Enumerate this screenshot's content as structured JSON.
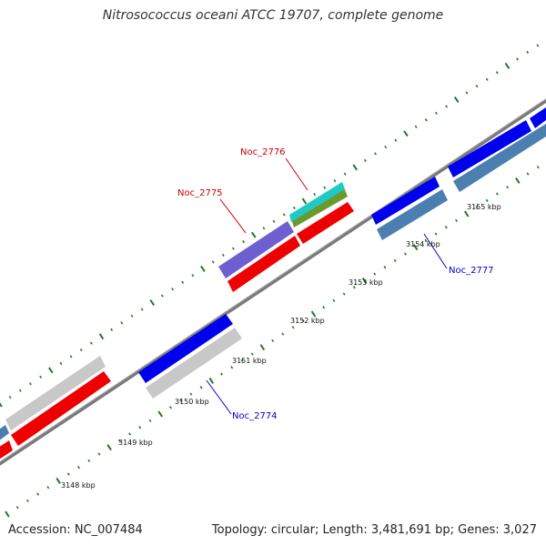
{
  "title": "Nitrosococcus oceani ATCC 19707, complete genome",
  "footer": {
    "accession": "Accession: NC_007484",
    "stats": "Topology: circular; Length: 3,481,691 bp; Genes: 3,027"
  },
  "colors": {
    "backbone": "#808080",
    "tick": "#1f7a1f",
    "label_red": "#cc0000",
    "label_blue": "#0000cc",
    "gene_blue": "#0000ee",
    "gene_red": "#ee0000",
    "gene_grey": "#c8c8c8",
    "gene_steel": "#4a7fb0",
    "gene_purple": "#6e5fd0",
    "gene_cyan": "#20c8c8",
    "gene_olive": "#6a9a2a"
  },
  "kbp_ticks": [
    "3148 kbp",
    "3149 kbp",
    "3150 kbp",
    "3151 kbp",
    "3152 kbp",
    "3153 kbp",
    "3154 kbp",
    "3155 kbp"
  ],
  "gene_labels": [
    {
      "id": "noc2774",
      "text": "Noc_2774",
      "color": "label_blue"
    },
    {
      "id": "noc2775",
      "text": "Noc_2775",
      "color": "label_red"
    },
    {
      "id": "noc2776",
      "text": "Noc_2776",
      "color": "label_red"
    },
    {
      "id": "noc2777",
      "text": "Noc_2777",
      "color": "label_blue"
    }
  ]
}
